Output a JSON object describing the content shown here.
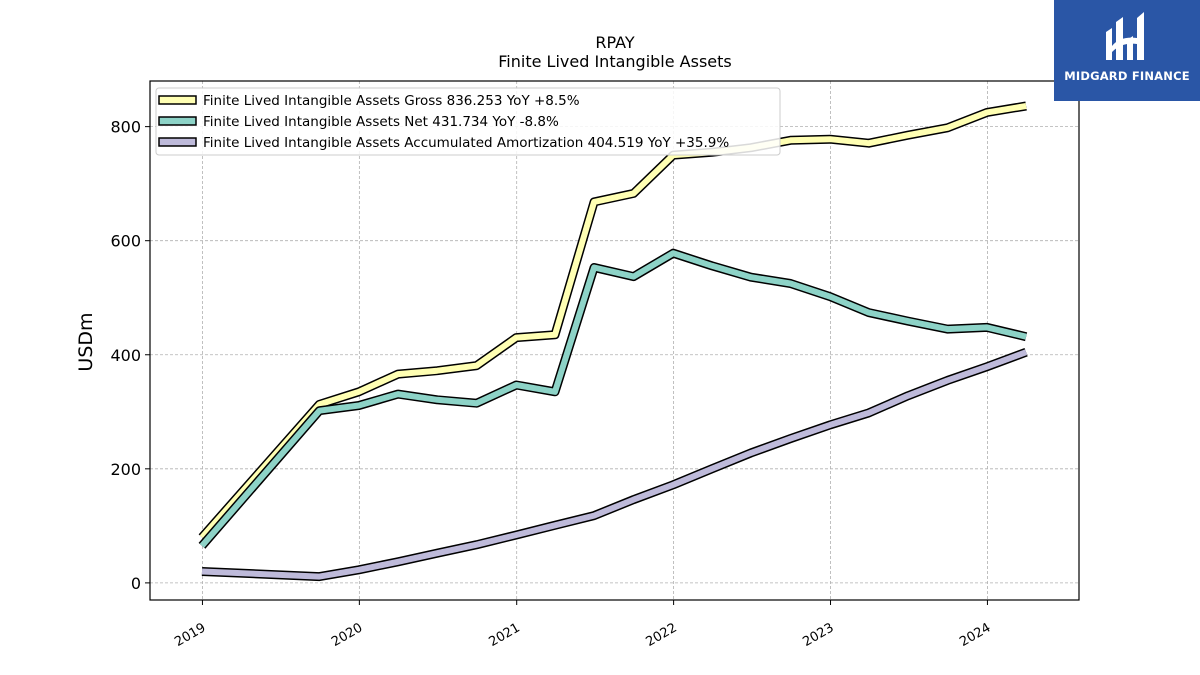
{
  "brand": {
    "name": "MIDGARD FINANCE",
    "bg_color": "#2a56a6"
  },
  "chart_data": {
    "type": "line",
    "title": "RPAY",
    "subtitle": "Finite Lived Intangible Assets",
    "xlabel": "",
    "ylabel": "USDm",
    "x_ticks": [
      "2019",
      "2020",
      "2021",
      "2022",
      "2023",
      "2024"
    ],
    "y_ticks": [
      0,
      200,
      400,
      600,
      800
    ],
    "xlim": [
      "2018-09-01",
      "2024-08-01"
    ],
    "ylim": [
      -30,
      880
    ],
    "grid": true,
    "legend_position": "top-left",
    "series": [
      {
        "name": "Finite Lived Intangible Assets Gross  836.253 YoY +8.5%",
        "color": "#ffffb3",
        "x": [
          "2018-12-31",
          "2019-09-30",
          "2019-12-31",
          "2020-03-31",
          "2020-06-30",
          "2020-09-30",
          "2020-12-31",
          "2021-03-31",
          "2021-06-30",
          "2021-09-30",
          "2021-12-31",
          "2022-03-31",
          "2022-06-30",
          "2022-09-30",
          "2022-12-31",
          "2023-03-31",
          "2023-06-30",
          "2023-09-30",
          "2023-12-31",
          "2024-03-31"
        ],
        "y": [
          80,
          313,
          335,
          366,
          372,
          381,
          430,
          435,
          668,
          683,
          750,
          755,
          763,
          776,
          778,
          771,
          785,
          798,
          825,
          836.253
        ]
      },
      {
        "name": "Finite Lived Intangible Assets Net  431.734 YoY -8.8%",
        "color": "#8dd3c7",
        "x": [
          "2018-12-31",
          "2019-09-30",
          "2019-12-31",
          "2020-03-31",
          "2020-06-30",
          "2020-09-30",
          "2020-12-31",
          "2021-03-31",
          "2021-06-30",
          "2021-09-30",
          "2021-12-31",
          "2022-03-31",
          "2022-06-30",
          "2022-09-30",
          "2022-12-31",
          "2023-03-31",
          "2023-06-30",
          "2023-09-30",
          "2023-12-31",
          "2024-03-31"
        ],
        "y": [
          65,
          302,
          311,
          331,
          321,
          315,
          347,
          335,
          553,
          537,
          578,
          556,
          536,
          525,
          502,
          474,
          459,
          445,
          448,
          431.734
        ]
      },
      {
        "name": "Finite Lived Intangible Assets Accumulated Amortization  404.519 YoY +35.9%",
        "color": "#bebada",
        "x": [
          "2018-12-31",
          "2019-09-30",
          "2019-12-31",
          "2020-03-31",
          "2020-06-30",
          "2020-09-30",
          "2020-12-31",
          "2021-03-31",
          "2021-06-30",
          "2021-09-30",
          "2021-12-31",
          "2022-03-31",
          "2022-06-30",
          "2022-09-30",
          "2022-12-31",
          "2023-03-31",
          "2023-06-30",
          "2023-09-30",
          "2023-12-31",
          "2024-03-31"
        ],
        "y": [
          20,
          11,
          23,
          37,
          52,
          67,
          84,
          101,
          118,
          146,
          172,
          200,
          228,
          253,
          277,
          298,
          328,
          355,
          379,
          404.519
        ]
      }
    ]
  }
}
